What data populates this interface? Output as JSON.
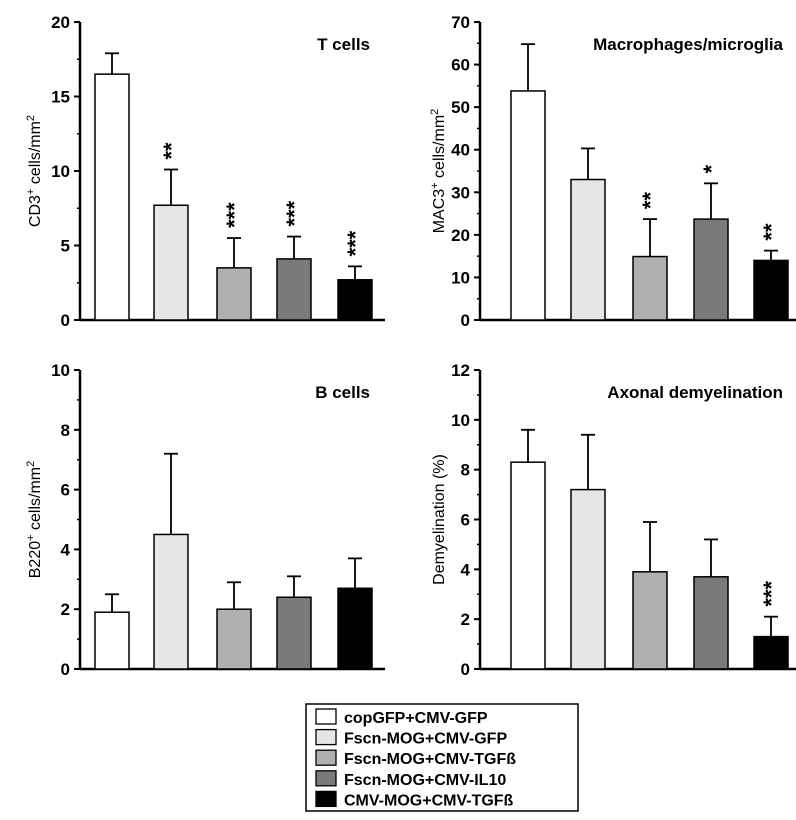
{
  "legend": {
    "entries": [
      {
        "label": "copGFP+CMV-GFP",
        "color": "#ffffff"
      },
      {
        "label": "Fscn-MOG+CMV-GFP",
        "color": "#e6e6e6"
      },
      {
        "label": "Fscn-MOG+CMV-TGFß",
        "color": "#b0b0b0"
      },
      {
        "label": "Fscn-MOG+CMV-IL10",
        "color": "#7a7a7a"
      },
      {
        "label": "CMV-MOG+CMV-TGFß",
        "color": "#000000"
      }
    ]
  },
  "chart_data": [
    {
      "type": "bar",
      "title": "T cells",
      "ylabel_main": "CD3",
      "ylabel_sup": "+",
      "ylabel_rest": " cells/mm",
      "ylabel_end": "2",
      "ylim": [
        0,
        20
      ],
      "yticks": [
        0,
        5,
        10,
        15,
        20
      ],
      "values": [
        16.5,
        7.7,
        3.5,
        4.1,
        2.7
      ],
      "errors": [
        1.4,
        2.4,
        2.0,
        1.5,
        0.9
      ],
      "significance": [
        "",
        "**",
        "***",
        "***",
        "***"
      ]
    },
    {
      "type": "bar",
      "title": "Macrophages/microglia",
      "ylabel_main": "MAC3",
      "ylabel_sup": "+",
      "ylabel_rest": " cells/mm",
      "ylabel_end": "2",
      "ylim": [
        0,
        70
      ],
      "yticks": [
        0,
        10,
        20,
        30,
        40,
        50,
        60,
        70
      ],
      "values": [
        53.8,
        33.0,
        14.9,
        23.7,
        14.0
      ],
      "errors": [
        11.0,
        7.3,
        8.8,
        8.4,
        2.3
      ],
      "significance": [
        "",
        "",
        "**",
        "*",
        "**"
      ]
    },
    {
      "type": "bar",
      "title": "B cells",
      "ylabel_main": "B220",
      "ylabel_sup": "+",
      "ylabel_rest": " cells/mm",
      "ylabel_end": "2",
      "ylim": [
        0,
        10
      ],
      "yticks": [
        0,
        2,
        4,
        6,
        8,
        10
      ],
      "values": [
        1.9,
        4.5,
        2.0,
        2.4,
        2.7
      ],
      "errors": [
        0.6,
        2.7,
        0.9,
        0.7,
        1.0
      ],
      "significance": [
        "",
        "",
        "",
        "",
        ""
      ]
    },
    {
      "type": "bar",
      "title": "Axonal demyelination",
      "ylabel_main": "Demyelination (%)",
      "ylabel_sup": "",
      "ylabel_rest": "",
      "ylabel_end": "",
      "ylim": [
        0,
        12
      ],
      "yticks": [
        0,
        2,
        4,
        6,
        8,
        10,
        12
      ],
      "values": [
        8.3,
        7.2,
        3.9,
        3.7,
        1.3
      ],
      "errors": [
        1.3,
        2.2,
        2.0,
        1.5,
        0.8
      ],
      "significance": [
        "",
        "",
        "",
        "",
        "***"
      ]
    }
  ]
}
